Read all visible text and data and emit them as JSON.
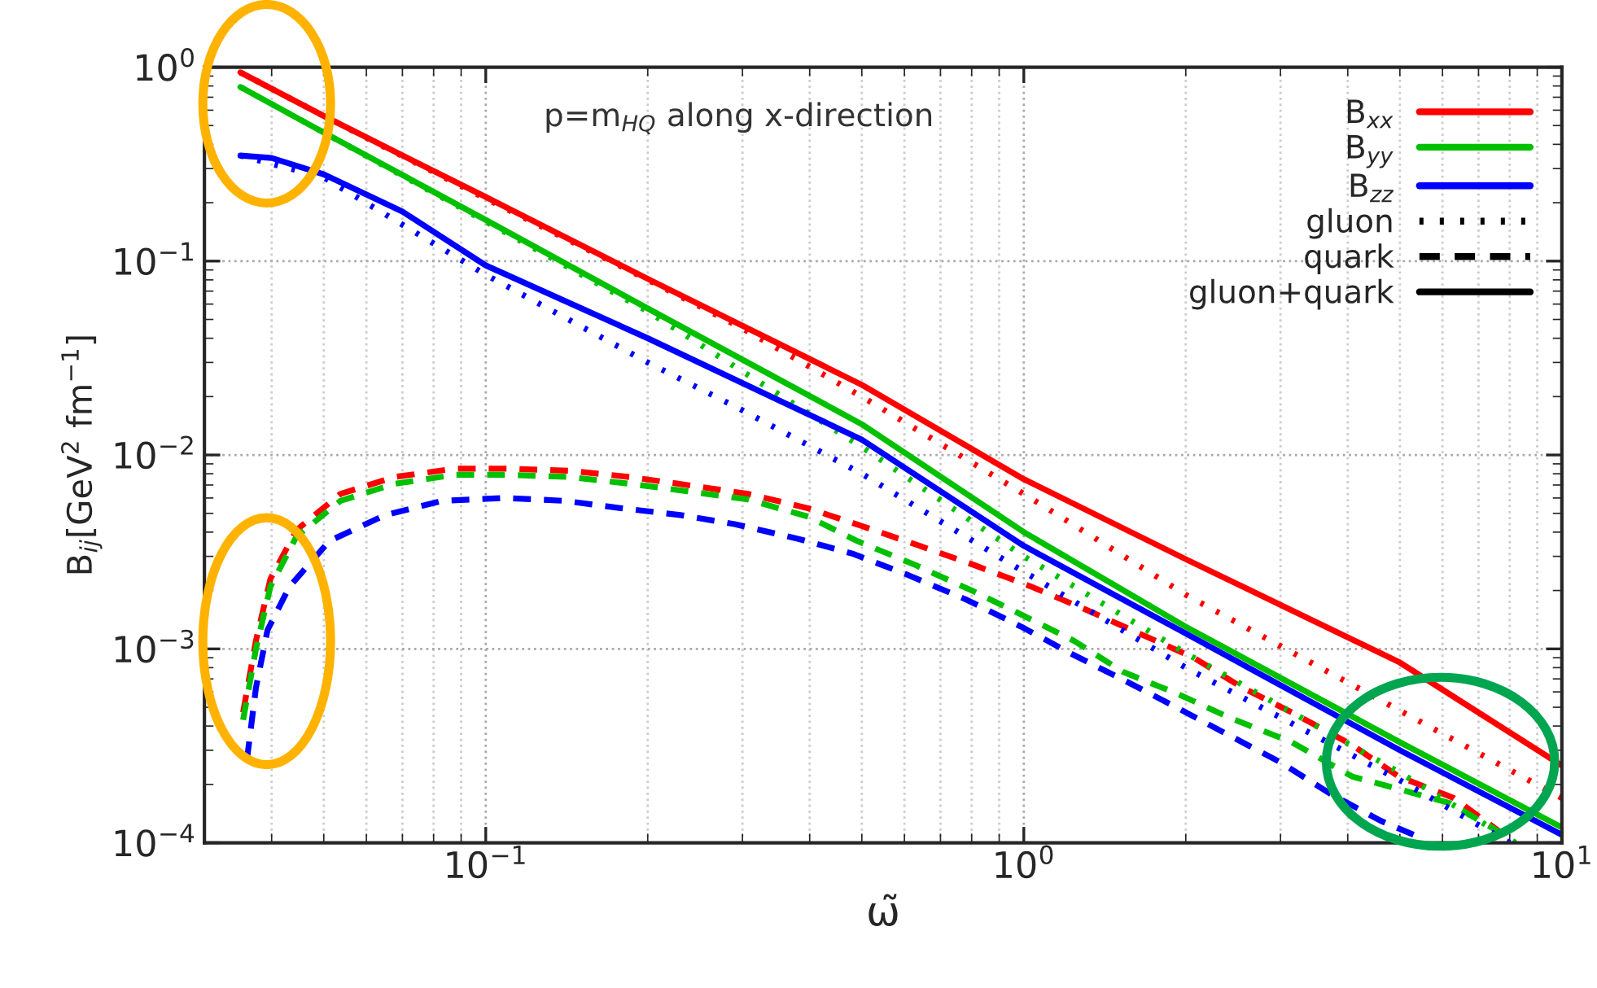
{
  "chart_data": {
    "type": "line",
    "xlabel": "ω̃",
    "ylabel": "B$_{ij}$[GeV$^{2}$ fm$^{−1}$]",
    "annotations": [
      "p=m$_{HQ}$ along x-direction",
      "gluon",
      "quark",
      "gluon+quark"
    ],
    "log": "xy",
    "grid": true,
    "legend": "top right",
    "xlim": [
      0.03,
      10
    ],
    "xticks": [
      {
        "value": 0.1,
        "label": "10$^{−1}$"
      },
      {
        "value": 1,
        "label": "10$^{0}$"
      },
      {
        "value": 10,
        "label": "10$^{1}$"
      }
    ],
    "ylim": [
      0.0001,
      1
    ],
    "yticks": [
      {
        "value": 0.0001,
        "label": "10$^{−4}$"
      },
      {
        "value": 0.001,
        "label": "10$^{−3}$"
      },
      {
        "value": 0.01,
        "label": "10$^{−2}$"
      },
      {
        "value": 0.1,
        "label": "10$^{−1}$"
      },
      {
        "value": 1,
        "label": "10$^{0}$"
      }
    ],
    "series": [
      {
        "color": "#ff0000",
        "line_style": "dotted",
        "x": [
          0.035,
          0.05,
          0.1,
          0.2,
          0.3,
          0.5,
          1,
          2,
          5,
          10
        ],
        "values": [
          0.94,
          0.56,
          0.21,
          0.08,
          0.045,
          0.02,
          0.0063,
          0.0019,
          0.00048,
          0.00017
        ]
      },
      {
        "color": "#ff0000",
        "line_style": "dashed",
        "x": [
          0.0354,
          0.0374,
          0.0398,
          0.0445,
          0.0537,
          0.0677,
          0.0876,
          0.11,
          0.143,
          0.185,
          0.237,
          0.307,
          0.398,
          0.5,
          0.64,
          0.81,
          1.03,
          1.3,
          1.64,
          2.07,
          2.55,
          3.15,
          4.07,
          4.97,
          6.3,
          7.8
        ],
        "values": [
          0.00047,
          0.0011,
          0.0023,
          0.0041,
          0.0063,
          0.0077,
          0.0085,
          0.0085,
          0.0083,
          0.0077,
          0.007,
          0.0063,
          0.0053,
          0.0043,
          0.0034,
          0.0027,
          0.0021,
          0.0016,
          0.0012,
          0.0009,
          0.00063,
          0.00047,
          0.00032,
          0.00022,
          0.00017,
          0.00011
        ]
      },
      {
        "name": "B$_{xx}$",
        "color": "#ff0000",
        "line_style": "solid",
        "x": [
          0.035,
          0.05,
          0.1,
          0.2,
          0.5,
          1,
          2,
          5,
          10
        ],
        "values": [
          0.94,
          0.56,
          0.214,
          0.081,
          0.023,
          0.0075,
          0.0029,
          0.00085,
          0.00025
        ]
      },
      {
        "color": "#00c000",
        "line_style": "dotted",
        "x": [
          0.035,
          0.05,
          0.1,
          0.2,
          0.5,
          1,
          2,
          5,
          8.2
        ],
        "values": [
          0.79,
          0.46,
          0.16,
          0.055,
          0.011,
          0.003,
          0.00095,
          0.00023,
          0.0001
        ]
      },
      {
        "color": "#00c000",
        "line_style": "dashed",
        "x": [
          0.0354,
          0.0374,
          0.0398,
          0.0445,
          0.0537,
          0.0677,
          0.0876,
          0.11,
          0.143,
          0.185,
          0.237,
          0.307,
          0.398,
          0.49,
          0.63,
          0.8,
          0.99,
          1.24,
          1.53,
          1.92,
          2.42,
          3.15,
          4.07,
          6.2,
          7.8
        ],
        "values": [
          0.00043,
          0.001,
          0.0021,
          0.0038,
          0.0058,
          0.0071,
          0.0079,
          0.0079,
          0.0077,
          0.0071,
          0.0065,
          0.0059,
          0.0048,
          0.0036,
          0.0027,
          0.002,
          0.0015,
          0.0011,
          0.00076,
          0.00059,
          0.00044,
          0.00033,
          0.00022,
          0.00016,
          0.00011
        ]
      },
      {
        "name": "B$_{yy}$",
        "color": "#00c000",
        "line_style": "solid",
        "x": [
          0.035,
          0.05,
          0.1,
          0.2,
          0.5,
          1,
          2,
          5,
          10
        ],
        "values": [
          0.79,
          0.46,
          0.163,
          0.057,
          0.0144,
          0.004,
          0.0013,
          0.00033,
          0.00012
        ]
      },
      {
        "color": "#0000ff",
        "line_style": "dotted",
        "x": [
          0.035,
          0.05,
          0.1,
          0.2,
          0.3,
          0.5,
          1,
          2,
          5,
          8
        ],
        "values": [
          0.35,
          0.27,
          0.085,
          0.03,
          0.017,
          0.008,
          0.0025,
          0.0008,
          0.00021,
          0.0001
        ]
      },
      {
        "color": "#0000ff",
        "line_style": "dashed",
        "x": [
          0.036,
          0.0374,
          0.0393,
          0.0432,
          0.0512,
          0.065,
          0.083,
          0.108,
          0.14,
          0.18,
          0.23,
          0.29,
          0.38,
          0.48,
          0.61,
          0.78,
          0.99,
          1.22,
          1.55,
          1.92,
          2.4,
          3.0,
          3.7,
          4.6,
          5.3
        ],
        "values": [
          0.00027,
          0.00063,
          0.00125,
          0.0021,
          0.0036,
          0.0049,
          0.0058,
          0.006,
          0.0058,
          0.0053,
          0.0049,
          0.0044,
          0.0037,
          0.0031,
          0.0024,
          0.0018,
          0.0013,
          0.00095,
          0.00068,
          0.0005,
          0.00036,
          0.00026,
          0.00018,
          0.00013,
          0.00011
        ]
      },
      {
        "name": "B$_{zz}$",
        "color": "#0000ff",
        "line_style": "solid",
        "x": [
          0.035,
          0.04,
          0.05,
          0.07,
          0.1,
          0.2,
          0.5,
          1,
          2,
          5,
          10
        ],
        "values": [
          0.35,
          0.34,
          0.28,
          0.18,
          0.095,
          0.04,
          0.012,
          0.0034,
          0.0012,
          0.0003,
          0.00011
        ]
      }
    ]
  }
}
